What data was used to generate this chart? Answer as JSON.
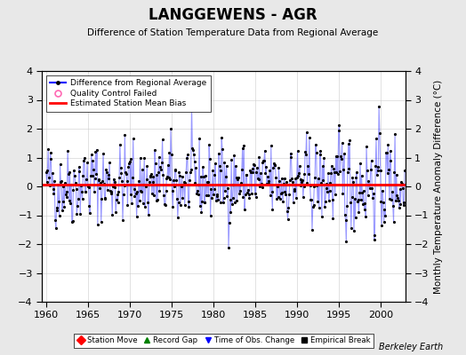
{
  "title": "LANGGEWENS - AGR",
  "subtitle": "Difference of Station Temperature Data from Regional Average",
  "ylabel_right": "Monthly Temperature Anomaly Difference (°C)",
  "bias": 0.05,
  "ylim": [
    -4,
    4
  ],
  "xlim": [
    1959.5,
    2003.0
  ],
  "xticks": [
    1960,
    1965,
    1970,
    1975,
    1980,
    1985,
    1990,
    1995,
    2000
  ],
  "yticks": [
    -4,
    -3,
    -2,
    -1,
    0,
    1,
    2,
    3,
    4
  ],
  "line_color": "#0000FF",
  "line_alpha": 0.4,
  "dot_color": "#000000",
  "bias_color": "#FF0000",
  "background_color": "#E8E8E8",
  "plot_bg_color": "#FFFFFF",
  "watermark": "Berkeley Earth",
  "seed": 42,
  "n_years": 43,
  "start_year": 1960
}
